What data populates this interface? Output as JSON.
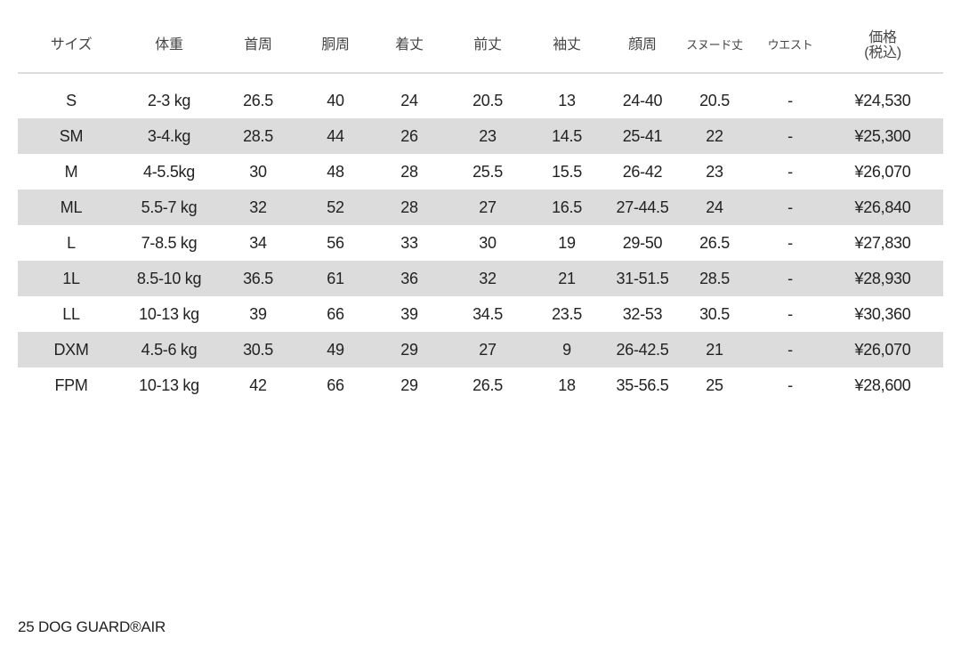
{
  "table": {
    "headers": [
      "サイズ",
      "体重",
      "首周",
      "胴周",
      "着丈",
      "前丈",
      "袖丈",
      "顔周",
      "スヌード丈",
      "ウエスト",
      "価格\n(税込)"
    ],
    "price_header": {
      "line1": "価格",
      "line2": "(税込)"
    },
    "rows": [
      [
        "S",
        "2-3 kg",
        "26.5",
        "40",
        "24",
        "20.5",
        "13",
        "24-40",
        "20.5",
        "-",
        "¥24,530"
      ],
      [
        "SM",
        "3-4.kg",
        "28.5",
        "44",
        "26",
        "23",
        "14.5",
        "25-41",
        "22",
        "-",
        "¥25,300"
      ],
      [
        "M",
        "4-5.5kg",
        "30",
        "48",
        "28",
        "25.5",
        "15.5",
        "26-42",
        "23",
        "-",
        "¥26,070"
      ],
      [
        "ML",
        "5.5-7 kg",
        "32",
        "52",
        "28",
        "27",
        "16.5",
        "27-44.5",
        "24",
        "-",
        "¥26,840"
      ],
      [
        "L",
        "7-8.5 kg",
        "34",
        "56",
        "33",
        "30",
        "19",
        "29-50",
        "26.5",
        "-",
        "¥27,830"
      ],
      [
        "1L",
        "8.5-10 kg",
        "36.5",
        "61",
        "36",
        "32",
        "21",
        "31-51.5",
        "28.5",
        "-",
        "¥28,930"
      ],
      [
        "LL",
        "10-13 kg",
        "39",
        "66",
        "39",
        "34.5",
        "23.5",
        "32-53",
        "30.5",
        "-",
        "¥30,360"
      ],
      [
        "DXM",
        "4.5-6 kg",
        "30.5",
        "49",
        "29",
        "27",
        "9",
        "26-42.5",
        "21",
        "-",
        "¥26,070"
      ],
      [
        "FPM",
        "10-13 kg",
        "42",
        "66",
        "29",
        "26.5",
        "18",
        "35-56.5",
        "25",
        "-",
        "¥28,600"
      ]
    ],
    "shade_color": "#dcdcdc"
  },
  "footer": {
    "title": "25 DOG GUARD®AIR"
  }
}
